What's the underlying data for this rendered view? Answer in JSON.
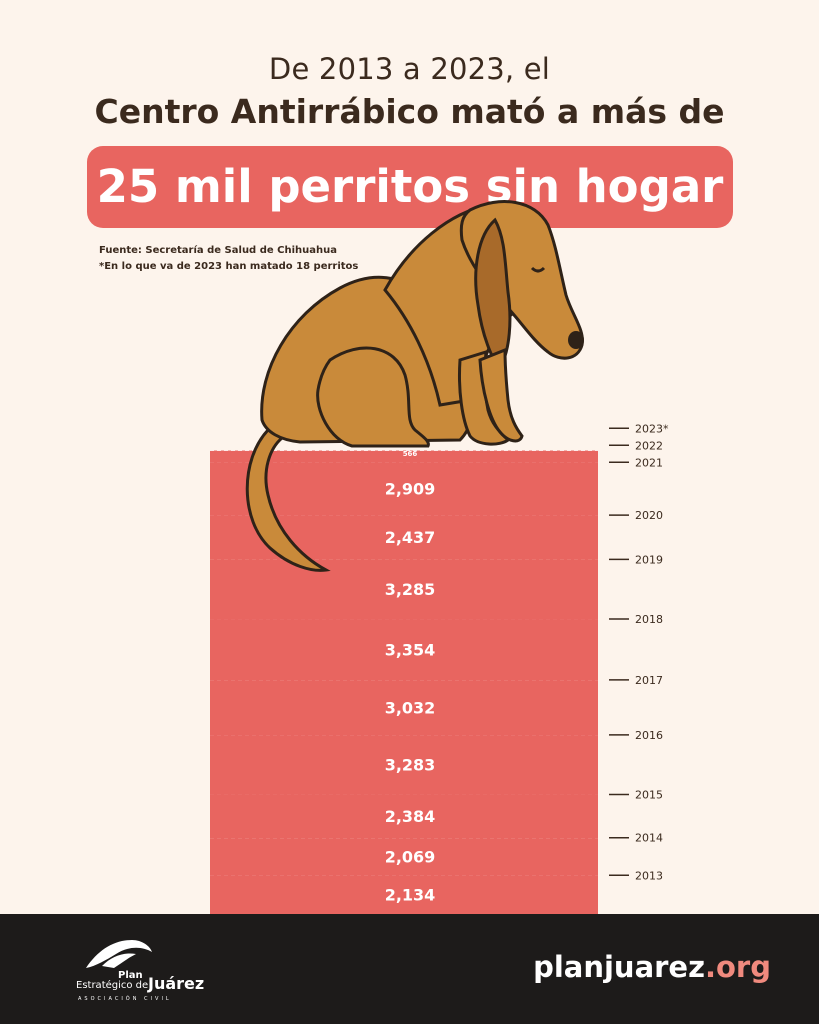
{
  "header": {
    "line1": "De 2013 a 2023, el",
    "line2": "Centro Antirrábico mató a más de",
    "highlight": "25 mil perritos sin hogar",
    "source": "Fuente: Secretaría de Salud de Chihuahua",
    "note": "*En lo que va de 2023 han matado 18 perritos"
  },
  "colors": {
    "bar": "#e86560",
    "background": "#fdf4ec",
    "text": "#3b2a1e",
    "footer": "#1d1b1a",
    "accent_url": "#f08a7e"
  },
  "chart_data": {
    "type": "bar",
    "orientation": "stacked-vertical",
    "categories": [
      "2013",
      "2014",
      "2015",
      "2016",
      "2017",
      "2018",
      "2019",
      "2020",
      "2021",
      "2022",
      "2023*"
    ],
    "values": [
      2134,
      2069,
      2384,
      3283,
      3032,
      3354,
      3285,
      2437,
      2909,
      566,
      18
    ],
    "value_labels": [
      "2,134",
      "2,069",
      "2,384",
      "3,283",
      "3,032",
      "3,354",
      "3,285",
      "2,437",
      "2,909",
      "566",
      ""
    ],
    "title": "25 mil perritos sin hogar",
    "xlabel": "",
    "ylabel": ""
  },
  "illustration": {
    "name": "sitting-dog"
  },
  "footer": {
    "logo_line1": "Plan",
    "logo_line2": "Estratégico de",
    "logo_line3": "Juárez",
    "logo_line4": "ASOCIACIÓN CIVIL",
    "url_main": "planjuarez",
    "url_tld": ".org"
  }
}
